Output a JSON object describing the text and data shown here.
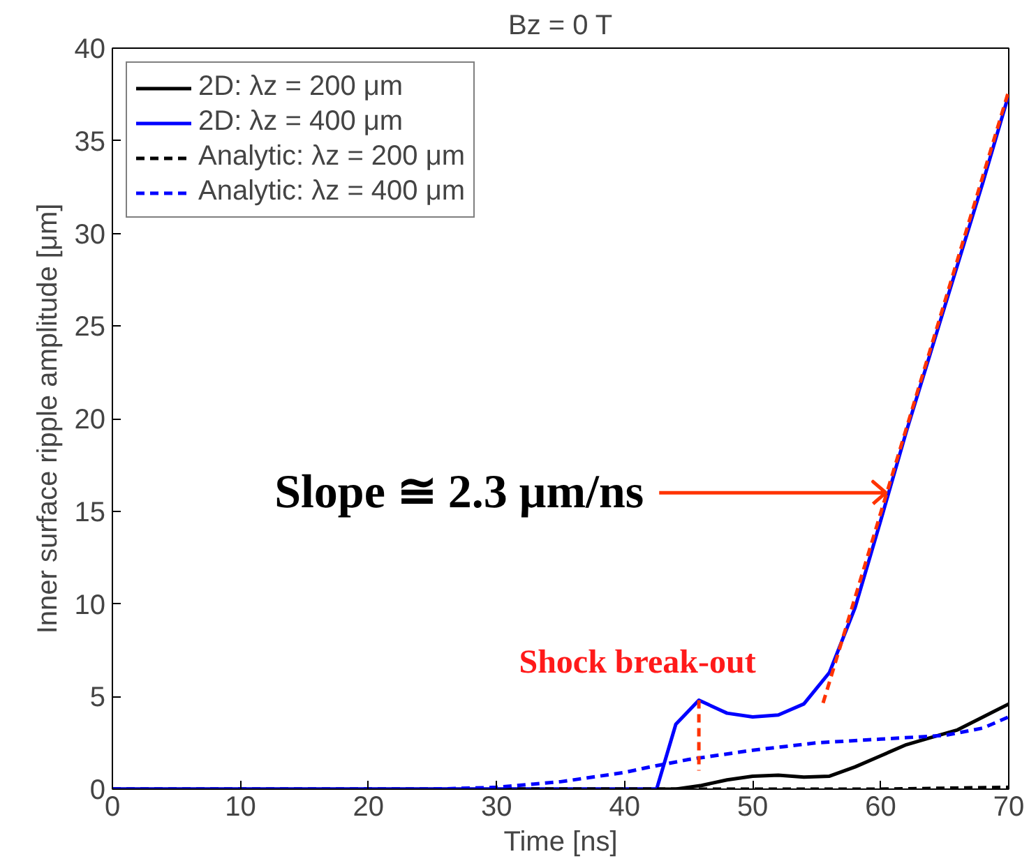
{
  "chart_data": {
    "type": "line",
    "title": "Bz = 0 T",
    "xlabel": "Time [ns]",
    "ylabel": "Inner surface ripple amplitude [μm]",
    "xlim": [
      0,
      70
    ],
    "ylim": [
      0,
      40
    ],
    "xticks": [
      0,
      10,
      20,
      30,
      40,
      50,
      60,
      70
    ],
    "yticks": [
      0,
      5,
      10,
      15,
      20,
      25,
      30,
      35,
      40
    ],
    "grid": false,
    "legend": "top left",
    "marker": "none",
    "series": [
      {
        "name": "2D: λz = 200 μm",
        "color": "#000000",
        "line_style": "solid",
        "x": [
          0,
          44,
          46,
          48,
          50,
          52,
          54,
          56,
          58,
          60,
          62,
          64,
          66,
          68,
          70
        ],
        "values": [
          0,
          0,
          0.2,
          0.5,
          0.7,
          0.75,
          0.65,
          0.7,
          1.2,
          1.8,
          2.4,
          2.8,
          3.2,
          3.9,
          4.6
        ]
      },
      {
        "name": "2D: λz = 400 μm",
        "color": "#0000ff",
        "line_style": "solid",
        "x": [
          0,
          42.5,
          44,
          45.8,
          48,
          50,
          52,
          54,
          56,
          58,
          60,
          62,
          64,
          66,
          68,
          70
        ],
        "values": [
          0,
          0,
          3.5,
          4.8,
          4.1,
          3.9,
          4.0,
          4.6,
          6.3,
          9.8,
          14.5,
          19.3,
          23.8,
          28.3,
          32.8,
          37.5
        ]
      },
      {
        "name": "Analytic: λz = 200 μm",
        "color": "#000000",
        "line_style": "dashed",
        "x": [
          0,
          60,
          70
        ],
        "values": [
          0,
          0,
          0.1
        ]
      },
      {
        "name": "Analytic: λz = 400 μm",
        "color": "#0000ff",
        "line_style": "dashed",
        "x": [
          0,
          25,
          30,
          35,
          40,
          42,
          45,
          50,
          55,
          60,
          65,
          68,
          70
        ],
        "values": [
          0,
          0,
          0.1,
          0.4,
          0.9,
          1.2,
          1.6,
          2.1,
          2.5,
          2.7,
          2.9,
          3.3,
          3.9
        ]
      },
      {
        "color": "#ff3300",
        "line_style": "dashed",
        "x": [
          55.5,
          70
        ],
        "values": [
          4.65,
          37.7
        ]
      },
      {
        "color": "#ff3300",
        "line_style": "dashed",
        "x": [
          45.8,
          45.8
        ],
        "values": [
          4.8,
          1.0
        ]
      }
    ],
    "annotations": [
      "Slope ≅ 2.3 μm/ns",
      "Shock break-out"
    ]
  }
}
